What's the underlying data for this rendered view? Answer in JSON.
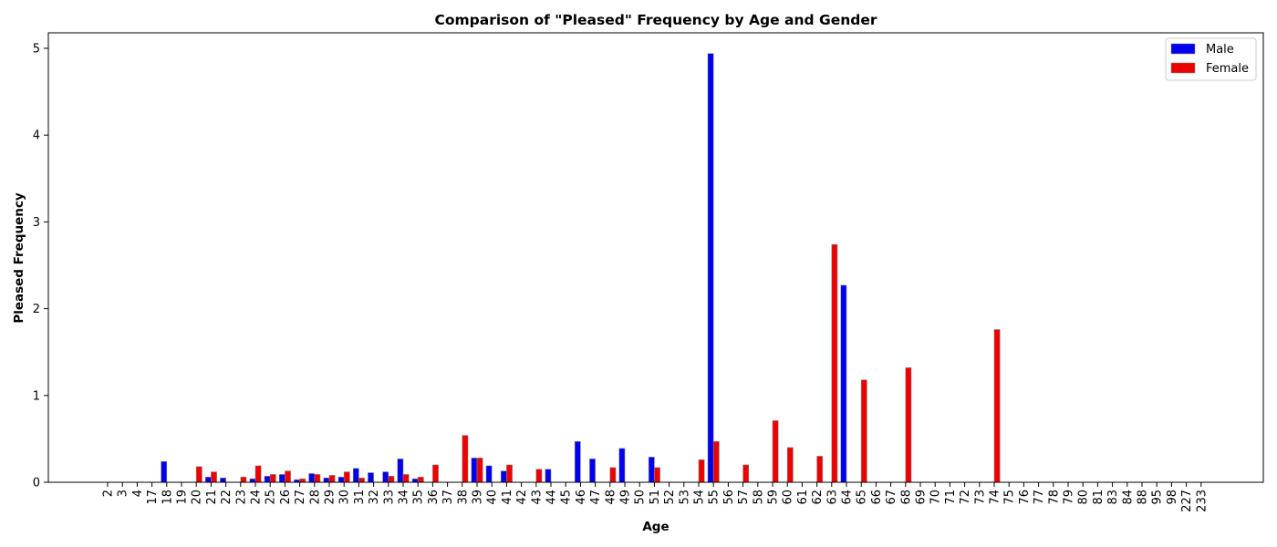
{
  "chart_data": {
    "type": "bar",
    "title": "Comparison of \"Pleased\" Frequency by Age and Gender",
    "xlabel": "Age",
    "ylabel": "Pleased Frequency",
    "ylim": [
      0,
      5.2
    ],
    "yticks": [
      0,
      1,
      2,
      3,
      4,
      5
    ],
    "grid": false,
    "legend_position": "top-right",
    "categories": [
      "2",
      "3",
      "4",
      "17",
      "18",
      "19",
      "20",
      "21",
      "22",
      "23",
      "24",
      "25",
      "26",
      "27",
      "28",
      "29",
      "30",
      "31",
      "32",
      "33",
      "34",
      "35",
      "36",
      "37",
      "38",
      "39",
      "40",
      "41",
      "42",
      "43",
      "44",
      "45",
      "46",
      "47",
      "48",
      "49",
      "50",
      "51",
      "52",
      "53",
      "54",
      "55",
      "56",
      "57",
      "58",
      "59",
      "60",
      "61",
      "62",
      "63",
      "64",
      "65",
      "66",
      "67",
      "68",
      "69",
      "70",
      "71",
      "72",
      "73",
      "74",
      "75",
      "76",
      "77",
      "78",
      "79",
      "80",
      "81",
      "83",
      "84",
      "88",
      "95",
      "98",
      "227",
      "233"
    ],
    "series": [
      {
        "name": "Male",
        "color": "#0000ee",
        "values": [
          0,
          0,
          0,
          0,
          0.24,
          0,
          0,
          0.06,
          0.05,
          0,
          0.04,
          0.07,
          0.09,
          0.03,
          0.1,
          0.05,
          0.06,
          0.16,
          0.11,
          0.12,
          0.27,
          0.04,
          0,
          0,
          0,
          0.28,
          0.19,
          0.13,
          0,
          0,
          0.15,
          0,
          0.47,
          0.27,
          0,
          0.39,
          0,
          0.29,
          0,
          0,
          0,
          4.94,
          0,
          0,
          0,
          0,
          0,
          0,
          0,
          0,
          2.27,
          0,
          0,
          0,
          0,
          0,
          0,
          0,
          0,
          0,
          0,
          0,
          0,
          0,
          0,
          0,
          0,
          0,
          0,
          0,
          0,
          0,
          0,
          0,
          0
        ]
      },
      {
        "name": "Female",
        "color": "#ee0000",
        "values": [
          0,
          0,
          0,
          0,
          0,
          0,
          0.18,
          0.12,
          0,
          0.06,
          0.19,
          0.09,
          0.13,
          0.04,
          0.09,
          0.08,
          0.12,
          0.05,
          0,
          0.07,
          0.09,
          0.06,
          0.2,
          0,
          0.54,
          0.28,
          0,
          0.2,
          0,
          0.15,
          0,
          0,
          0,
          0,
          0.17,
          0,
          0,
          0.17,
          0,
          0,
          0.26,
          0.47,
          0,
          0.2,
          0,
          0.71,
          0.4,
          0,
          0.3,
          2.74,
          0,
          1.18,
          0,
          0,
          1.32,
          0,
          0,
          0,
          0,
          0,
          1.76,
          0,
          0,
          0,
          0,
          0,
          0,
          0,
          0,
          0,
          0,
          0,
          0,
          0,
          0
        ]
      }
    ]
  }
}
